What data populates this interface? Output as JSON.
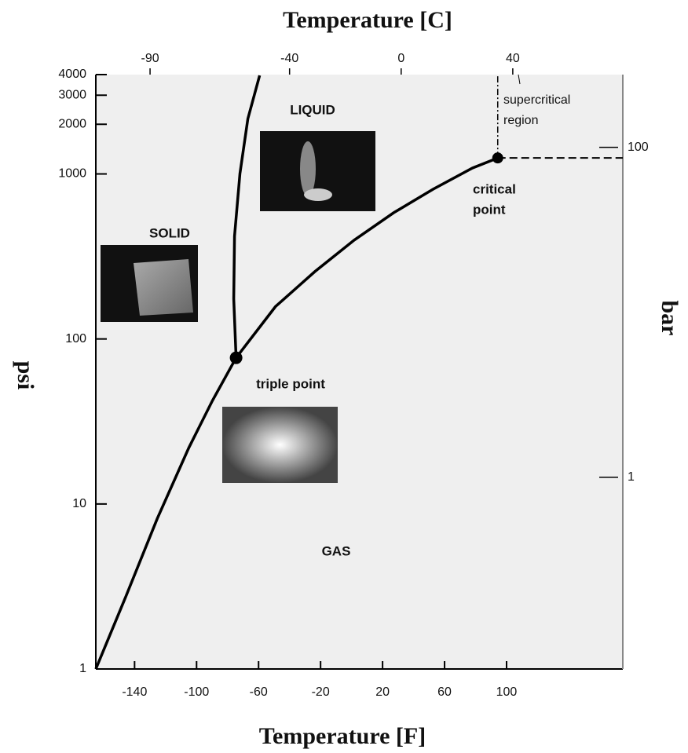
{
  "chart_data": {
    "type": "line",
    "title": "Temperature [C]",
    "xlabel": "Temperature [F]",
    "ylabel": "psi",
    "y2label": "bar",
    "log_y": true,
    "xlim": [
      -165,
      175
    ],
    "xticks": [
      -140,
      -100,
      -60,
      -20,
      20,
      60,
      100
    ],
    "x2lim": [
      -109.44,
      79.44
    ],
    "x2ticks": [
      -90,
      -40,
      0,
      40
    ],
    "ylim": [
      1,
      4000
    ],
    "yticks": [
      1,
      10,
      100,
      1000,
      2000,
      3000,
      4000
    ],
    "y2lim": [
      0.0689,
      275.8
    ],
    "y2ticks": [
      1,
      100
    ],
    "series": [
      {
        "color": "#000000",
        "x": [
          -165,
          -145.7,
          -125.3,
          -105,
          -89.8,
          -74.5
        ],
        "values": [
          1,
          2.74,
          8.17,
          21.9,
          42.2,
          76.9
        ]
      },
      {
        "color": "#000000",
        "x": [
          -74.5,
          -49.1,
          -23.7,
          1.7,
          27.2,
          52.6,
          78.0,
          94.3
        ],
        "values": [
          76.9,
          157,
          256,
          397,
          582,
          808,
          1086,
          1250
        ]
      },
      {
        "color": "#000000",
        "x": [
          -74.5,
          -76.0,
          -75.5,
          -72.0,
          -66.9,
          -59.3
        ],
        "values": [
          76.9,
          175,
          419,
          1005,
          2162,
          3950
        ]
      }
    ],
    "annotations": {
      "liquid": "LIQUID",
      "solid": "SOLID",
      "gas": "GAS",
      "triple_point": "triple point",
      "critical_point": [
        "critical",
        "point"
      ],
      "supercritical": [
        "supercritical",
        "region"
      ]
    }
  }
}
